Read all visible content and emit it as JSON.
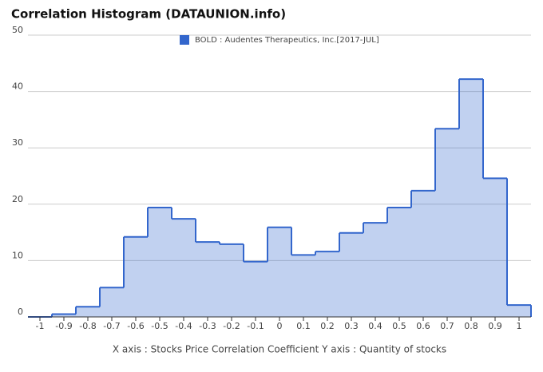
{
  "chart_data": {
    "type": "step-area",
    "title": "Correlation Histogram (DATAUNION.info)",
    "x_label": "X axis : Stocks Price Correlation Coefficient  Y axis : Quantity of stocks",
    "x": [
      -1,
      -0.9,
      -0.8,
      -0.7,
      -0.6,
      -0.5,
      -0.4,
      -0.3,
      -0.2,
      -0.1,
      0,
      0.1,
      0.2,
      0.3,
      0.4,
      0.5,
      0.6,
      0.7,
      0.8,
      0.9,
      1
    ],
    "series": [
      {
        "name": "BOLD : Audentes Therapeutics, Inc.[2017-JUL]",
        "color": "#3366cc",
        "values": [
          0,
          0.5,
          1.8,
          5.2,
          14.2,
          19.4,
          17.4,
          13.3,
          12.9,
          9.8,
          15.9,
          11.0,
          11.6,
          14.9,
          16.7,
          19.4,
          22.4,
          33.4,
          42.2,
          24.6,
          2.1
        ]
      }
    ],
    "xlim": [
      -1.05,
      1.05
    ],
    "xticks": [
      -1,
      -0.9,
      -0.8,
      -0.7,
      -0.6,
      -0.5,
      -0.4,
      -0.3,
      -0.2,
      -0.1,
      0,
      0.1,
      0.2,
      0.3,
      0.4,
      0.5,
      0.6,
      0.7,
      0.8,
      0.9,
      1
    ],
    "ylim": [
      0,
      50
    ],
    "yticks": [
      0,
      10,
      20,
      30,
      40,
      50
    ],
    "grid": true,
    "legend": "top"
  }
}
